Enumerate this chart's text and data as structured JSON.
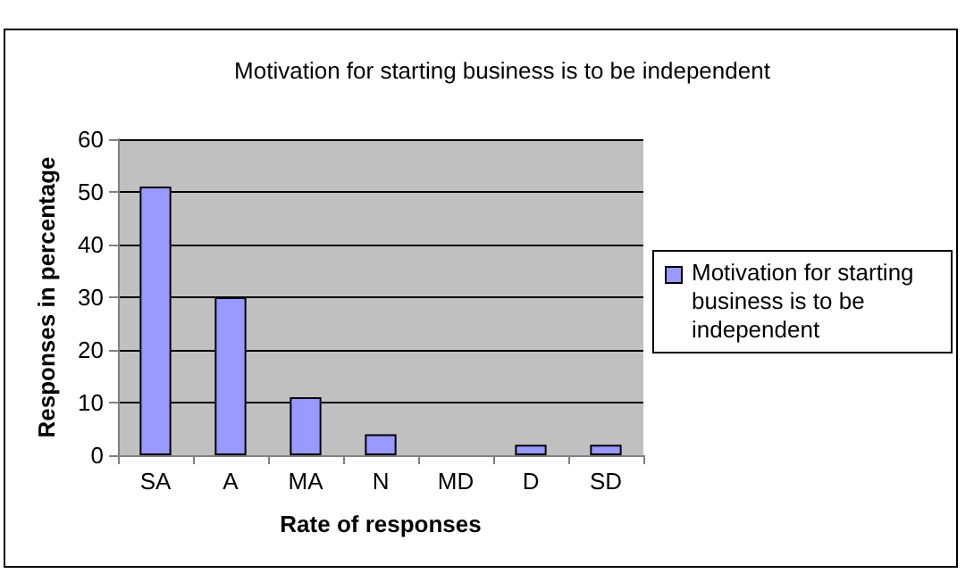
{
  "chart_data": {
    "type": "bar",
    "title": "Motivation for starting business is to be independent",
    "xlabel": "Rate of responses",
    "ylabel": "Responses in percentage",
    "categories": [
      "SA",
      "A",
      "MA",
      "N",
      "MD",
      "D",
      "SD"
    ],
    "series": [
      {
        "name": "Motivation for starting business is to be independent",
        "color": "#9999ff",
        "values": [
          51,
          30,
          11,
          4,
          0,
          2,
          2
        ]
      }
    ],
    "ylim": [
      0,
      60
    ],
    "yticks": [
      0,
      10,
      20,
      30,
      40,
      50,
      60
    ],
    "grid": "y",
    "legend": "right"
  }
}
